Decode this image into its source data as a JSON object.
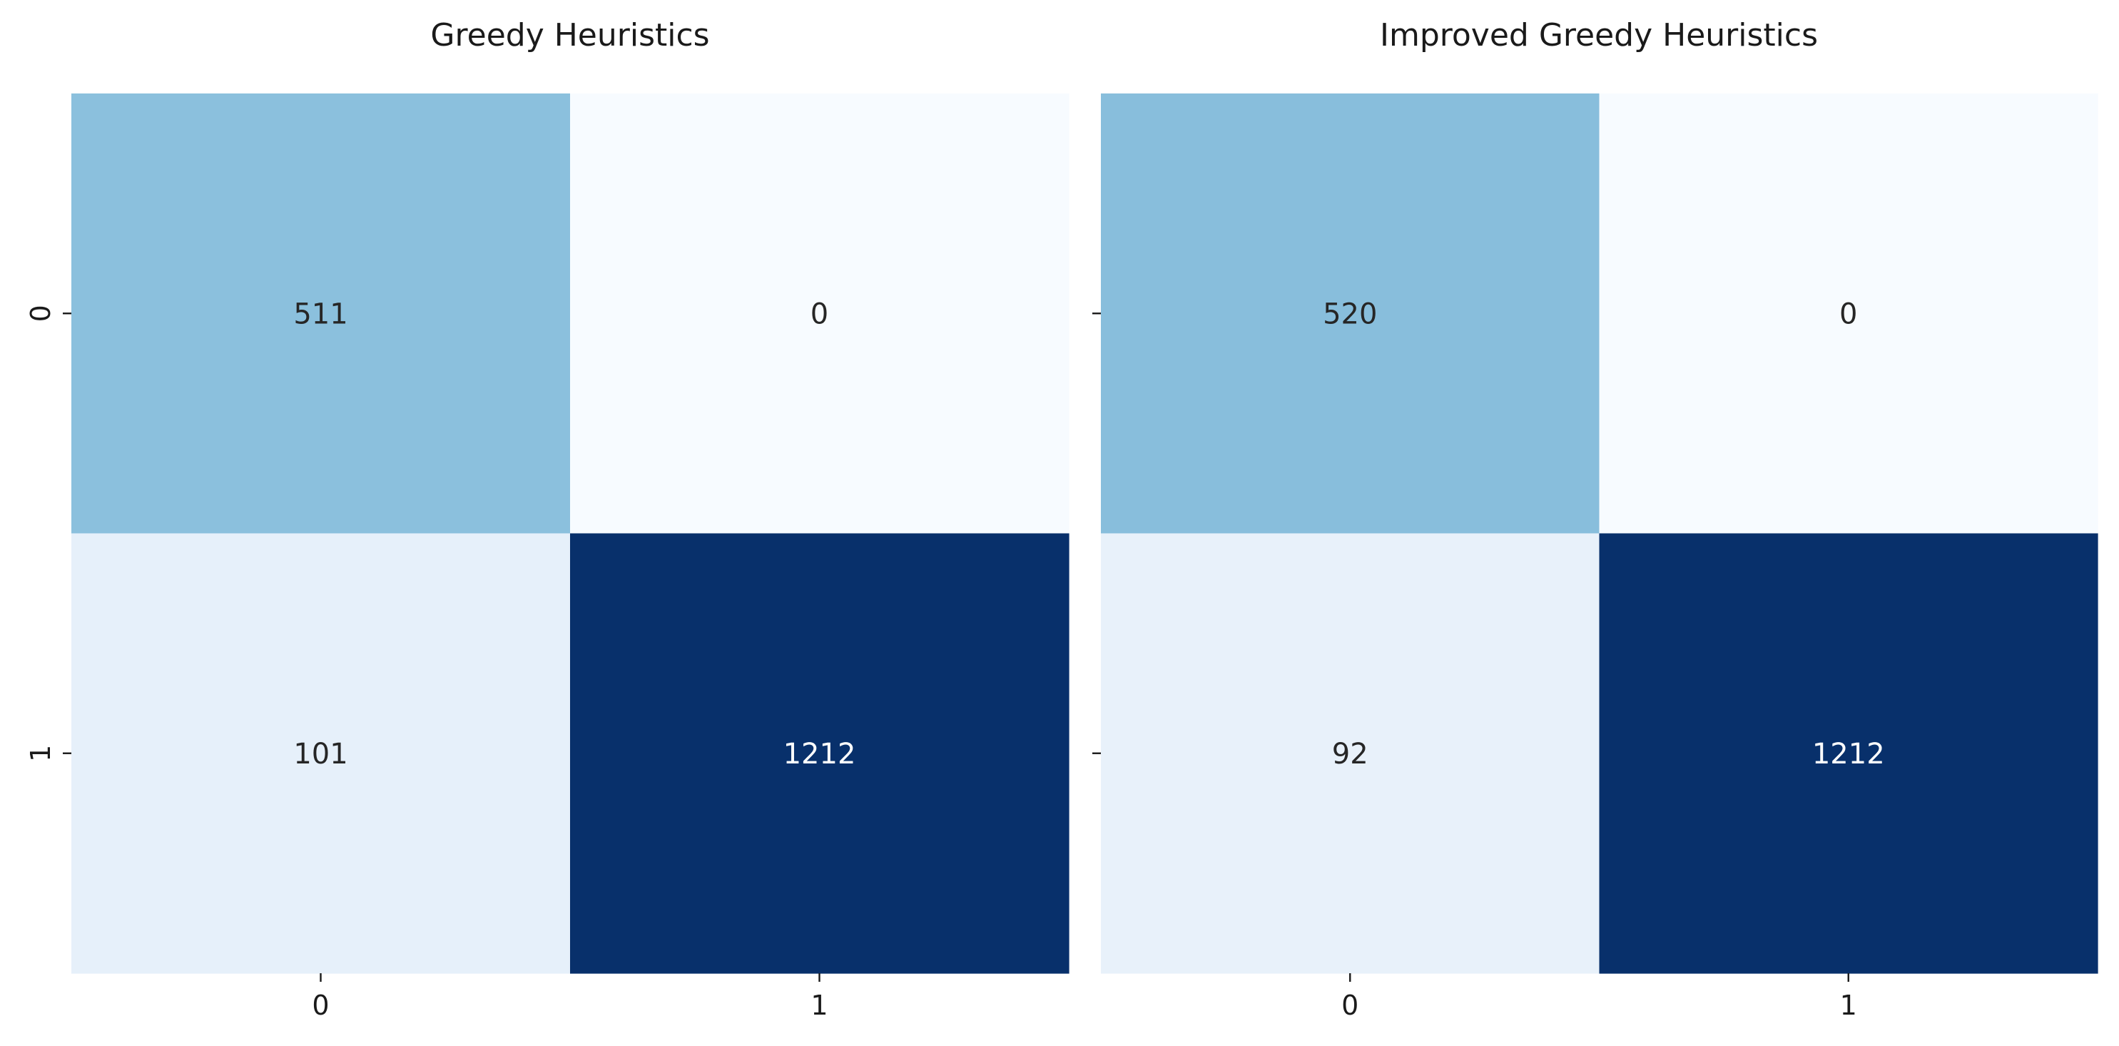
{
  "chart_data": [
    {
      "type": "heatmap",
      "title": "Greedy Heuristics",
      "x_tick_labels": [
        "0",
        "1"
      ],
      "y_tick_labels": [
        "0",
        "1"
      ],
      "values": [
        [
          511,
          0
        ],
        [
          101,
          1212
        ]
      ],
      "colormap": "Blues",
      "colorbar": false,
      "xlabel": "",
      "ylabel": ""
    },
    {
      "type": "heatmap",
      "title": "Improved Greedy Heuristics",
      "x_tick_labels": [
        "0",
        "1"
      ],
      "y_tick_labels": [],
      "values": [
        [
          520,
          0
        ],
        [
          92,
          1212
        ]
      ],
      "colormap": "Blues",
      "colorbar": false,
      "xlabel": "",
      "ylabel": ""
    }
  ],
  "colors": {
    "blues_light": "#f7fbff",
    "blues_dark": "#08306b",
    "text_dark": "#262626",
    "text_light": "#ffffff"
  }
}
